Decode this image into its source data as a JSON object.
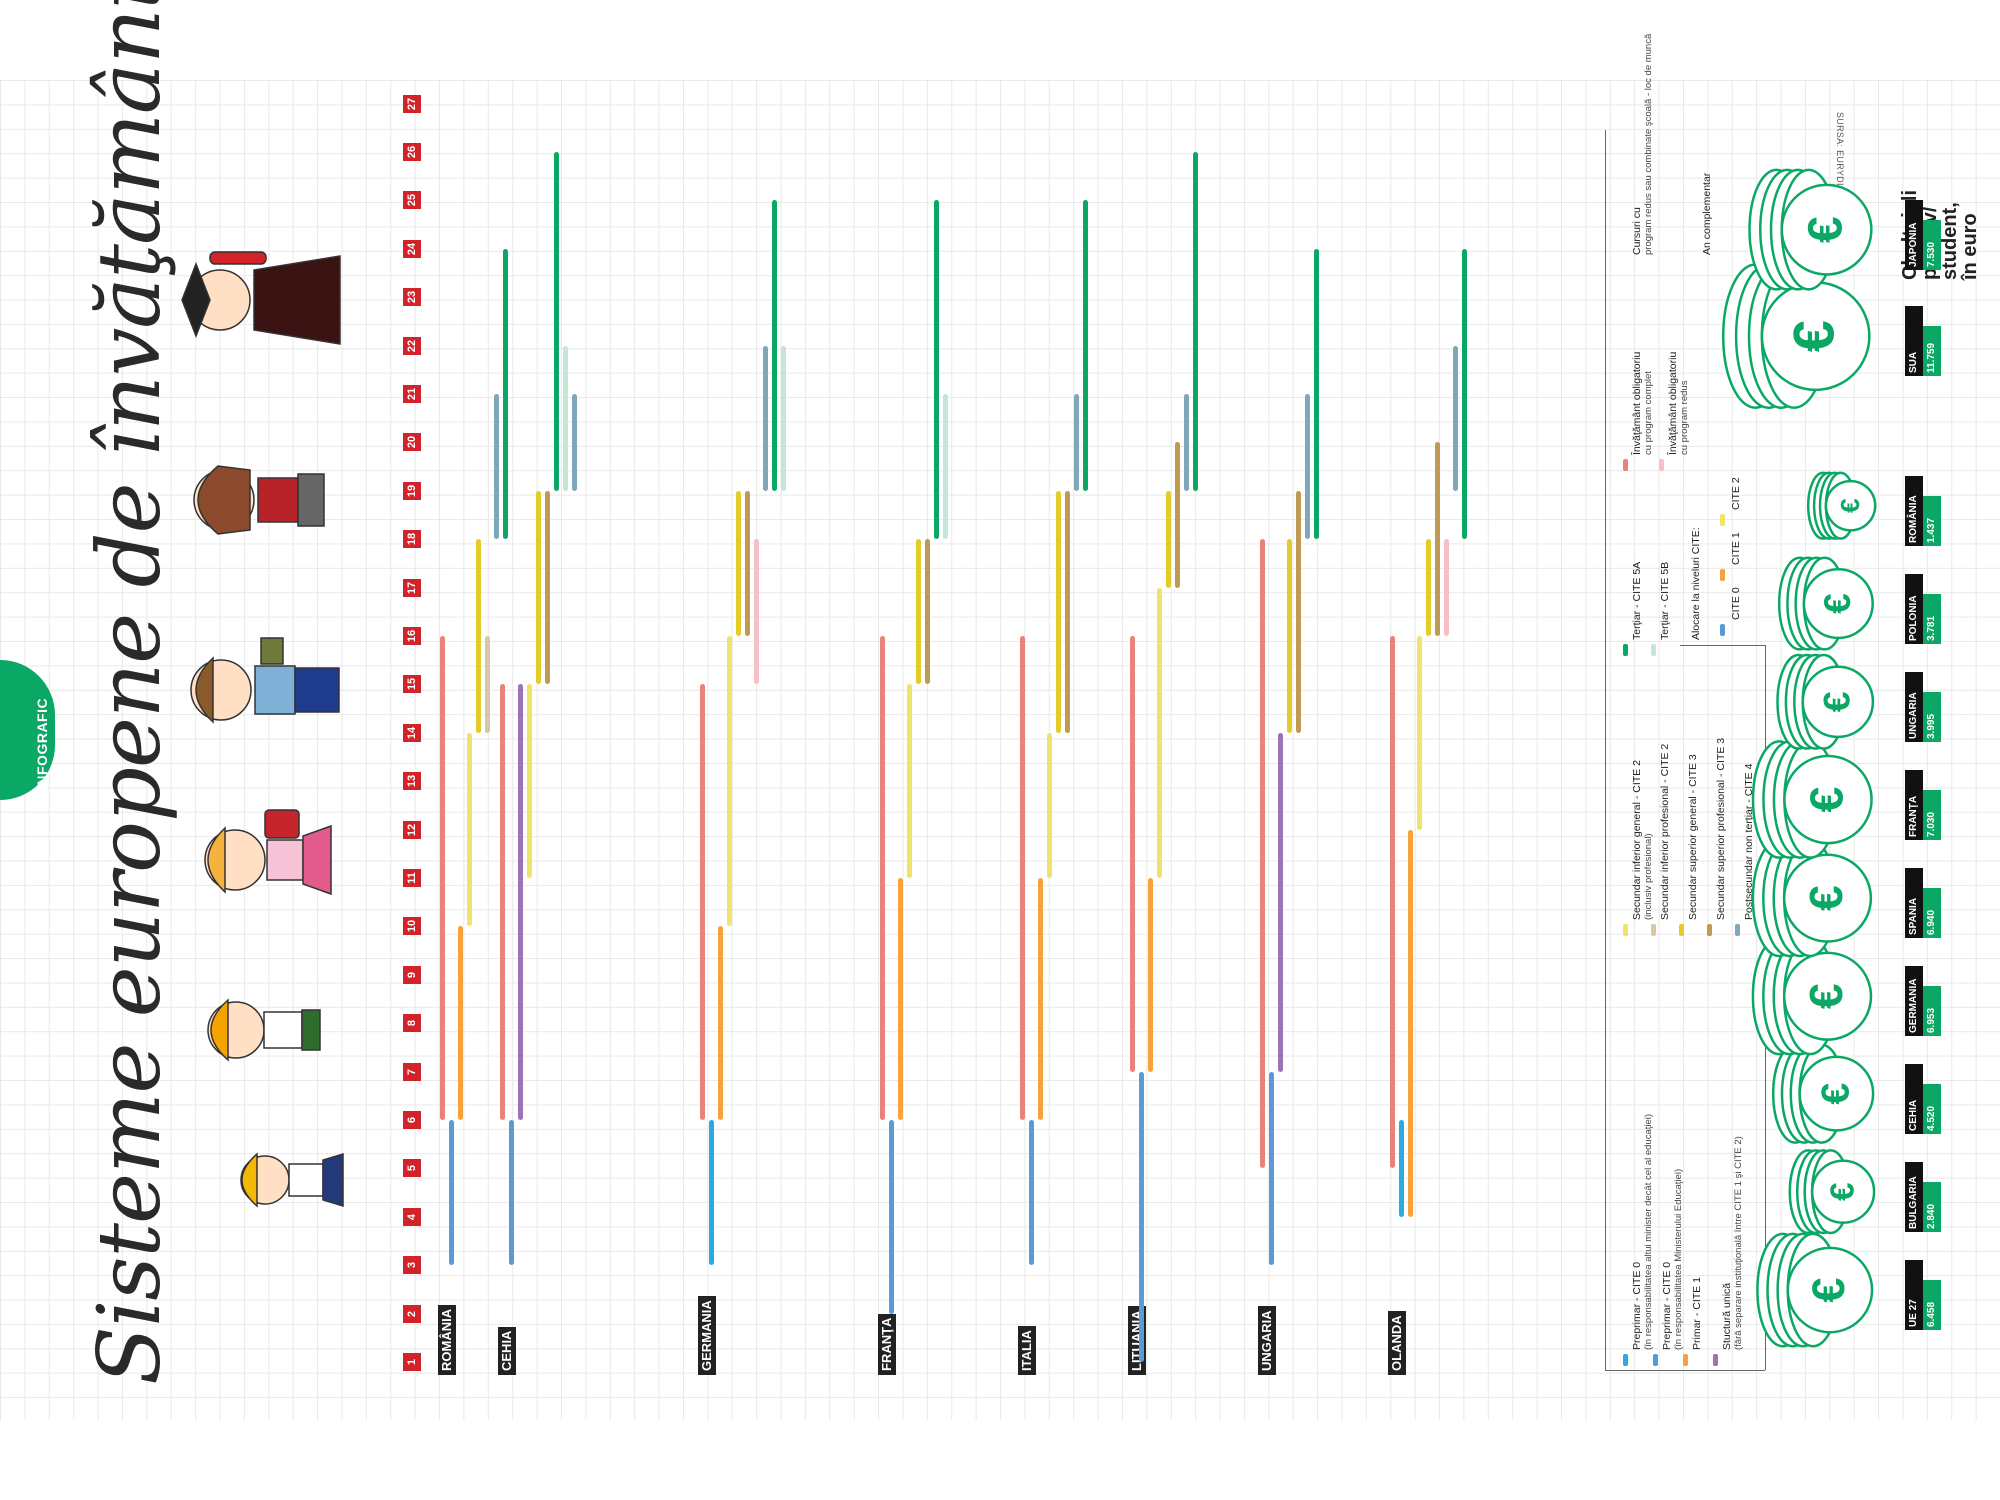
{
  "section_tab": "INFOGRAFIC",
  "title": "Sisteme europene de învăţământ",
  "source": "SURSA: EURYDICE, EUROSTAT",
  "colors": {
    "preprimar_alt": "#29abe2",
    "preprimar": "#5b9bd5",
    "primar": "#f7a23c",
    "structura_unica": "#9b73b8",
    "secundar_inf_general": "#efe36a",
    "secundar_inf_prof": "#d9c7a3",
    "secundar_sup_general": "#e3cc2a",
    "secundar_sup_prof": "#bf9a52",
    "postsecundar": "#7fa7ba",
    "tertiar_5a": "#0aa864",
    "tertiar_5b": "#c5e6d5",
    "oblig_complet": "#e8827a",
    "oblig_redus": "#f6c1c4",
    "accent_red": "#d2232a",
    "money": "#0aa864"
  },
  "chart_data": {
    "type": "bar",
    "orientation": "age-axis",
    "title": "Sisteme europene de învăţământ",
    "age_axis": [
      1,
      2,
      3,
      4,
      5,
      6,
      7,
      8,
      9,
      10,
      11,
      12,
      13,
      14,
      15,
      16,
      17,
      18,
      19,
      20,
      21,
      22,
      23,
      24,
      25,
      26,
      27
    ],
    "countries": [
      "ROMÂNIA",
      "CEHIA",
      "GERMANIA",
      "FRANŢA",
      "ITALIA",
      "LITUANIA",
      "UNGARIA",
      "OLANDA"
    ],
    "bars": [
      {
        "country": "ROMÂNIA",
        "category": "oblig_complet",
        "from": 6,
        "to": 16
      },
      {
        "country": "ROMÂNIA",
        "category": "preprimar",
        "from": 3,
        "to": 6
      },
      {
        "country": "ROMÂNIA",
        "category": "primar",
        "from": 6,
        "to": 10
      },
      {
        "country": "ROMÂNIA",
        "category": "secundar_inf_general",
        "from": 10,
        "to": 14
      },
      {
        "country": "ROMÂNIA",
        "category": "secundar_sup_general",
        "from": 14,
        "to": 18
      },
      {
        "country": "ROMÂNIA",
        "category": "secundar_inf_prof",
        "from": 14,
        "to": 16
      },
      {
        "country": "ROMÂNIA",
        "category": "postsecundar",
        "from": 18,
        "to": 21
      },
      {
        "country": "ROMÂNIA",
        "category": "tertiar_5a",
        "from": 18,
        "to": 24
      },
      {
        "country": "CEHIA",
        "category": "oblig_complet",
        "from": 6,
        "to": 15
      },
      {
        "country": "CEHIA",
        "category": "preprimar",
        "from": 3,
        "to": 6
      },
      {
        "country": "CEHIA",
        "category": "structura_unica",
        "from": 6,
        "to": 15
      },
      {
        "country": "CEHIA",
        "category": "secundar_inf_general",
        "from": 11,
        "to": 15
      },
      {
        "country": "CEHIA",
        "category": "secundar_sup_general",
        "from": 15,
        "to": 19
      },
      {
        "country": "CEHIA",
        "category": "secundar_sup_prof",
        "from": 15,
        "to": 19
      },
      {
        "country": "CEHIA",
        "category": "tertiar_5a",
        "from": 19,
        "to": 26
      },
      {
        "country": "CEHIA",
        "category": "tertiar_5b",
        "from": 19,
        "to": 22
      },
      {
        "country": "CEHIA",
        "category": "postsecundar",
        "from": 19,
        "to": 21
      },
      {
        "country": "GERMANIA",
        "category": "oblig_complet",
        "from": 6,
        "to": 15
      },
      {
        "country": "GERMANIA",
        "category": "preprimar_alt",
        "from": 3,
        "to": 6
      },
      {
        "country": "GERMANIA",
        "category": "primar",
        "from": 6,
        "to": 10
      },
      {
        "country": "GERMANIA",
        "category": "secundar_inf_general",
        "from": 10,
        "to": 16
      },
      {
        "country": "GERMANIA",
        "category": "secundar_sup_general",
        "from": 16,
        "to": 19
      },
      {
        "country": "GERMANIA",
        "category": "secundar_sup_prof",
        "from": 16,
        "to": 19
      },
      {
        "country": "GERMANIA",
        "category": "oblig_redus",
        "from": 15,
        "to": 18
      },
      {
        "country": "GERMANIA",
        "category": "postsecundar",
        "from": 19,
        "to": 22
      },
      {
        "country": "GERMANIA",
        "category": "tertiar_5a",
        "from": 19,
        "to": 25
      },
      {
        "country": "GERMANIA",
        "category": "tertiar_5b",
        "from": 19,
        "to": 22
      },
      {
        "country": "FRANŢA",
        "category": "oblig_complet",
        "from": 6,
        "to": 16
      },
      {
        "country": "FRANŢA",
        "category": "preprimar",
        "from": 2,
        "to": 6
      },
      {
        "country": "FRANŢA",
        "category": "primar",
        "from": 6,
        "to": 11
      },
      {
        "country": "FRANŢA",
        "category": "secundar_inf_general",
        "from": 11,
        "to": 15
      },
      {
        "country": "FRANŢA",
        "category": "secundar_sup_general",
        "from": 15,
        "to": 18
      },
      {
        "country": "FRANŢA",
        "category": "secundar_sup_prof",
        "from": 15,
        "to": 18
      },
      {
        "country": "FRANŢA",
        "category": "tertiar_5a",
        "from": 18,
        "to": 25
      },
      {
        "country": "FRANŢA",
        "category": "tertiar_5b",
        "from": 18,
        "to": 21
      },
      {
        "country": "ITALIA",
        "category": "oblig_complet",
        "from": 6,
        "to": 16
      },
      {
        "country": "ITALIA",
        "category": "preprimar",
        "from": 3,
        "to": 6
      },
      {
        "country": "ITALIA",
        "category": "primar",
        "from": 6,
        "to": 11
      },
      {
        "country": "ITALIA",
        "category": "secundar_inf_general",
        "from": 11,
        "to": 14
      },
      {
        "country": "ITALIA",
        "category": "secundar_sup_general",
        "from": 14,
        "to": 19
      },
      {
        "country": "ITALIA",
        "category": "secundar_sup_prof",
        "from": 14,
        "to": 19
      },
      {
        "country": "ITALIA",
        "category": "postsecundar",
        "from": 19,
        "to": 21
      },
      {
        "country": "ITALIA",
        "category": "tertiar_5a",
        "from": 19,
        "to": 25
      },
      {
        "country": "LITUANIA",
        "category": "oblig_complet",
        "from": 7,
        "to": 16
      },
      {
        "country": "LITUANIA",
        "category": "preprimar",
        "from": 1,
        "to": 7
      },
      {
        "country": "LITUANIA",
        "category": "primar",
        "from": 7,
        "to": 11
      },
      {
        "country": "LITUANIA",
        "category": "secundar_inf_general",
        "from": 11,
        "to": 17
      },
      {
        "country": "LITUANIA",
        "category": "secundar_sup_general",
        "from": 17,
        "to": 19
      },
      {
        "country": "LITUANIA",
        "category": "secundar_sup_prof",
        "from": 17,
        "to": 20
      },
      {
        "country": "LITUANIA",
        "category": "postsecundar",
        "from": 19,
        "to": 21
      },
      {
        "country": "LITUANIA",
        "category": "tertiar_5a",
        "from": 19,
        "to": 26
      },
      {
        "country": "UNGARIA",
        "category": "oblig_complet",
        "from": 5,
        "to": 18
      },
      {
        "country": "UNGARIA",
        "category": "preprimar",
        "from": 3,
        "to": 7
      },
      {
        "country": "UNGARIA",
        "category": "structura_unica",
        "from": 7,
        "to": 14
      },
      {
        "country": "UNGARIA",
        "category": "secundar_sup_general",
        "from": 14,
        "to": 18
      },
      {
        "country": "UNGARIA",
        "category": "secundar_sup_prof",
        "from": 14,
        "to": 19
      },
      {
        "country": "UNGARIA",
        "category": "postsecundar",
        "from": 18,
        "to": 21
      },
      {
        "country": "UNGARIA",
        "category": "tertiar_5a",
        "from": 18,
        "to": 24
      },
      {
        "country": "OLANDA",
        "category": "oblig_complet",
        "from": 5,
        "to": 16
      },
      {
        "country": "OLANDA",
        "category": "preprimar_alt",
        "from": 4,
        "to": 6
      },
      {
        "country": "OLANDA",
        "category": "primar",
        "from": 4,
        "to": 12
      },
      {
        "country": "OLANDA",
        "category": "secundar_inf_general",
        "from": 12,
        "to": 16
      },
      {
        "country": "OLANDA",
        "category": "secundar_sup_general",
        "from": 16,
        "to": 18
      },
      {
        "country": "OLANDA",
        "category": "secundar_sup_prof",
        "from": 16,
        "to": 20
      },
      {
        "country": "OLANDA",
        "category": "oblig_redus",
        "from": 16,
        "to": 18
      },
      {
        "country": "OLANDA",
        "category": "postsecundar",
        "from": 19,
        "to": 22
      },
      {
        "country": "OLANDA",
        "category": "tertiar_5a",
        "from": 18,
        "to": 24
      }
    ]
  },
  "legend": {
    "col1": [
      {
        "key": "preprimar_alt",
        "label": "Preprimar - CITE 0",
        "sub": "(în responsabilitatea altui minister decât cel al educaţiei)"
      },
      {
        "key": "preprimar",
        "label": "Preprimar - CITE 0",
        "sub": "(în responsabilitatea Ministerului Educaţiei)"
      },
      {
        "key": "primar",
        "label": "Primar - CITE 1",
        "sub": ""
      },
      {
        "key": "structura_unica",
        "label": "Stuctură unică",
        "sub": "(fără separare instituţională între CITE 1 şi CITE 2)"
      }
    ],
    "col2": [
      {
        "key": "secundar_inf_general",
        "label": "Secundar inferior general - CITE 2",
        "sub": "(inclusiv profesional)"
      },
      {
        "key": "secundar_inf_prof",
        "label": "Secundar inferior profesional - CITE 2",
        "sub": ""
      },
      {
        "key": "secundar_sup_general",
        "label": "Secundar superior general - CITE 3",
        "sub": ""
      },
      {
        "key": "secundar_sup_prof",
        "label": "Secundar superior profesional - CITE 3",
        "sub": ""
      },
      {
        "key": "postsecundar",
        "label": "Postsecundar non terţiar - CITE 4",
        "sub": ""
      }
    ],
    "col3": [
      {
        "key": "tertiar_5a",
        "label": "Terţiar - CITE 5A",
        "sub": ""
      },
      {
        "key": "tertiar_5b",
        "label": "Terţiar - CITE 5B",
        "sub": ""
      }
    ],
    "alocare_title": "Alocare la niveluri CITE:",
    "alocare": [
      "CITE 0",
      "CITE 1",
      "CITE 2"
    ],
    "col4": [
      {
        "key": "oblig_complet",
        "label": "Învăţământ obligatoriu",
        "sub": "cu program complet"
      },
      {
        "key": "oblig_redus",
        "label": "Învăţământ obligatoriu",
        "sub": "cu program redus"
      }
    ],
    "col5": [
      {
        "label": "Cursuri cu",
        "sub": "program redus sau combinate şcoală - loc de muncă"
      },
      {
        "label": "An complementar",
        "sub": ""
      }
    ]
  },
  "cost": {
    "title_lines": [
      "Cheltuieli",
      "pe elev/",
      "student,",
      "în euro"
    ],
    "items": [
      {
        "name": "UE 27",
        "value": "6.458"
      },
      {
        "name": "BULGARIA",
        "value": "2.840"
      },
      {
        "name": "CEHIA",
        "value": "4.520"
      },
      {
        "name": "GERMANIA",
        "value": "6.953"
      },
      {
        "name": "SPANIA",
        "value": "6.940"
      },
      {
        "name": "FRANŢA",
        "value": "7.030"
      },
      {
        "name": "UNGARIA",
        "value": "3.995"
      },
      {
        "name": "POLONIA",
        "value": "3.781"
      },
      {
        "name": "ROMÂNIA",
        "value": "1.437"
      },
      {
        "name": "SUA",
        "value": "11.759"
      },
      {
        "name": "JAPONIA",
        "value": "7.530"
      }
    ]
  }
}
